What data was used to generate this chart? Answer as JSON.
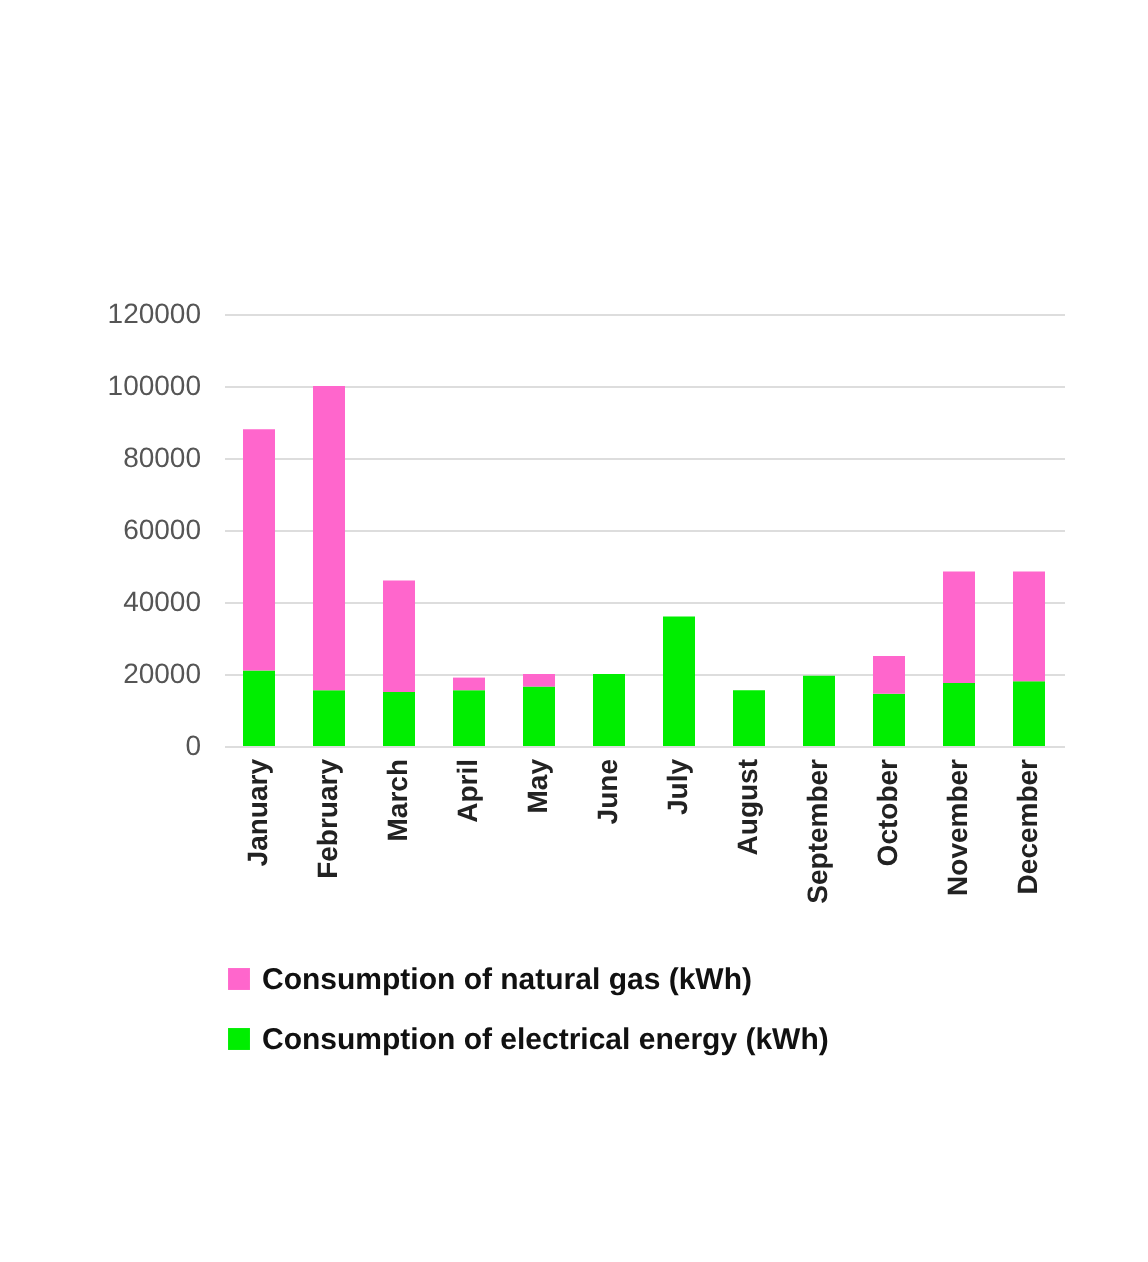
{
  "chart_data": {
    "type": "bar",
    "stacked": true,
    "categories": [
      "January",
      "February",
      "March",
      "April",
      "May",
      "June",
      "July",
      "August",
      "September",
      "October",
      "November",
      "December"
    ],
    "series": [
      {
        "name": "Consumption of electrical energy (kWh)",
        "color": "#00ee00",
        "values": [
          21000,
          15500,
          15000,
          15500,
          16500,
          20000,
          36000,
          15500,
          19500,
          14500,
          17500,
          18000
        ]
      },
      {
        "name": "Consumption of natural gas (kWh)",
        "color": "#ff66cc",
        "values": [
          67000,
          84500,
          31000,
          3500,
          3500,
          0,
          0,
          0,
          0,
          10500,
          31000,
          30500
        ]
      }
    ],
    "ylim": [
      0,
      120000
    ],
    "yticks": [
      0,
      20000,
      40000,
      60000,
      80000,
      100000,
      120000
    ],
    "grid": "y",
    "legend": "bottom"
  }
}
